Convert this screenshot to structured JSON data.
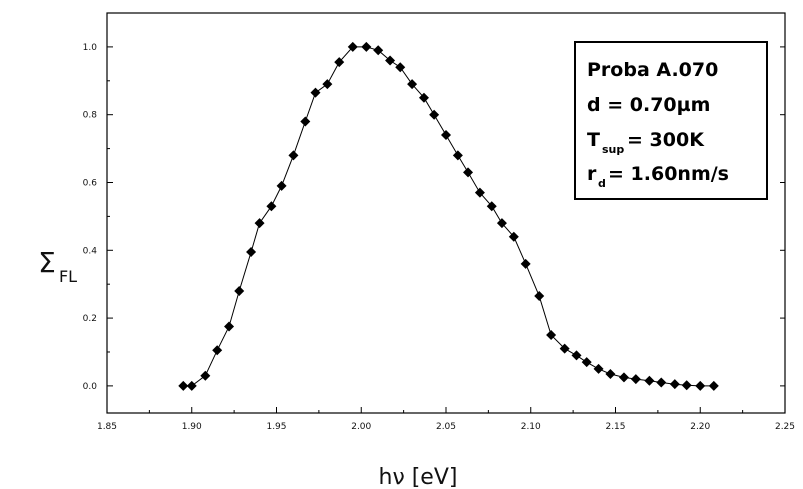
{
  "chart_data": {
    "type": "scatter",
    "xlabel": "hν [eV]",
    "ylabel_main": "Σ",
    "ylabel_sub": "FL",
    "xlim": [
      1.85,
      2.25
    ],
    "ylim": [
      -0.08,
      1.1
    ],
    "x_ticks": [
      "1.85",
      "1.90",
      "1.95",
      "2.00",
      "2.05",
      "2.10",
      "2.15",
      "2.20",
      "2.25"
    ],
    "y_ticks": [
      "0.0",
      "0.2",
      "0.4",
      "0.6",
      "0.8",
      "1.0"
    ],
    "legend": {
      "sample": "Proba A.070",
      "d": "d = 0.70µm",
      "t_main": "T",
      "t_sub": "sup",
      "t_value": "= 300K",
      "r_main": "r",
      "r_sub": "d",
      "r_value": "= 1.60nm/s"
    },
    "series": [
      {
        "marker": "diamond",
        "color": "#000000",
        "points": [
          [
            1.895,
            0.0
          ],
          [
            1.9,
            0.0
          ],
          [
            1.908,
            0.03
          ],
          [
            1.915,
            0.105
          ],
          [
            1.922,
            0.175
          ],
          [
            1.928,
            0.28
          ],
          [
            1.935,
            0.395
          ],
          [
            1.94,
            0.48
          ],
          [
            1.947,
            0.53
          ],
          [
            1.953,
            0.59
          ],
          [
            1.96,
            0.68
          ],
          [
            1.967,
            0.78
          ],
          [
            1.973,
            0.865
          ],
          [
            1.98,
            0.89
          ],
          [
            1.987,
            0.955
          ],
          [
            1.995,
            1.0
          ],
          [
            2.003,
            1.0
          ],
          [
            2.01,
            0.99
          ],
          [
            2.017,
            0.96
          ],
          [
            2.023,
            0.94
          ],
          [
            2.03,
            0.89
          ],
          [
            2.037,
            0.85
          ],
          [
            2.043,
            0.8
          ],
          [
            2.05,
            0.74
          ],
          [
            2.057,
            0.68
          ],
          [
            2.063,
            0.63
          ],
          [
            2.07,
            0.57
          ],
          [
            2.077,
            0.53
          ],
          [
            2.083,
            0.48
          ],
          [
            2.09,
            0.44
          ],
          [
            2.097,
            0.36
          ],
          [
            2.105,
            0.265
          ],
          [
            2.112,
            0.15
          ],
          [
            2.12,
            0.11
          ],
          [
            2.127,
            0.09
          ],
          [
            2.133,
            0.07
          ],
          [
            2.14,
            0.05
          ],
          [
            2.147,
            0.035
          ],
          [
            2.155,
            0.025
          ],
          [
            2.162,
            0.02
          ],
          [
            2.17,
            0.015
          ],
          [
            2.177,
            0.01
          ],
          [
            2.185,
            0.005
          ],
          [
            2.192,
            0.002
          ],
          [
            2.2,
            0.0
          ],
          [
            2.208,
            0.0
          ]
        ]
      }
    ]
  }
}
